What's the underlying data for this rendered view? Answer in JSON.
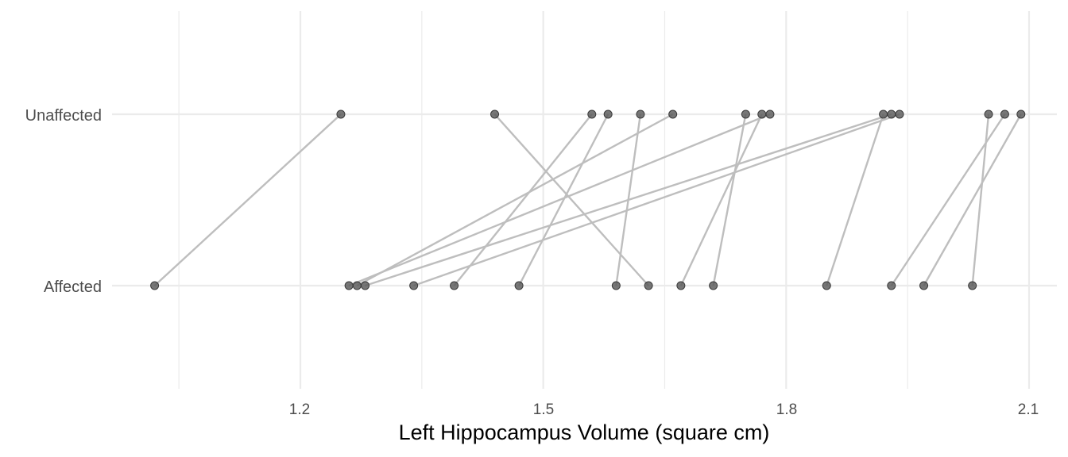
{
  "chart_data": {
    "type": "dumbbell",
    "xlabel": "Left Hippocampus Volume (square cm)",
    "ylabel": "",
    "categories": [
      "Unaffected",
      "Affected"
    ],
    "x_ticks": [
      "1.2",
      "1.5",
      "1.8",
      "2.1"
    ],
    "x_tick_values": [
      1.2,
      1.5,
      1.8,
      2.1
    ],
    "xlim": [
      1.03,
      2.13
    ],
    "grid": true,
    "colors": {
      "point": "#595959",
      "line": "#bebebe",
      "grid": "#ebebeb"
    },
    "pairs": [
      {
        "unaffected": 1.25,
        "affected": 1.02
      },
      {
        "unaffected": 1.44,
        "affected": 1.63
      },
      {
        "unaffected": 1.56,
        "affected": 1.39
      },
      {
        "unaffected": 1.58,
        "affected": 1.47
      },
      {
        "unaffected": 1.62,
        "affected": 1.59
      },
      {
        "unaffected": 1.66,
        "affected": 1.27
      },
      {
        "unaffected": 1.75,
        "affected": 1.71
      },
      {
        "unaffected": 1.77,
        "affected": 1.67
      },
      {
        "unaffected": 1.78,
        "affected": 1.26
      },
      {
        "unaffected": 1.92,
        "affected": 1.85
      },
      {
        "unaffected": 1.93,
        "affected": 1.28
      },
      {
        "unaffected": 1.94,
        "affected": 1.34
      },
      {
        "unaffected": 2.05,
        "affected": 2.03
      },
      {
        "unaffected": 2.07,
        "affected": 1.93
      },
      {
        "unaffected": 2.09,
        "affected": 1.97
      }
    ]
  }
}
